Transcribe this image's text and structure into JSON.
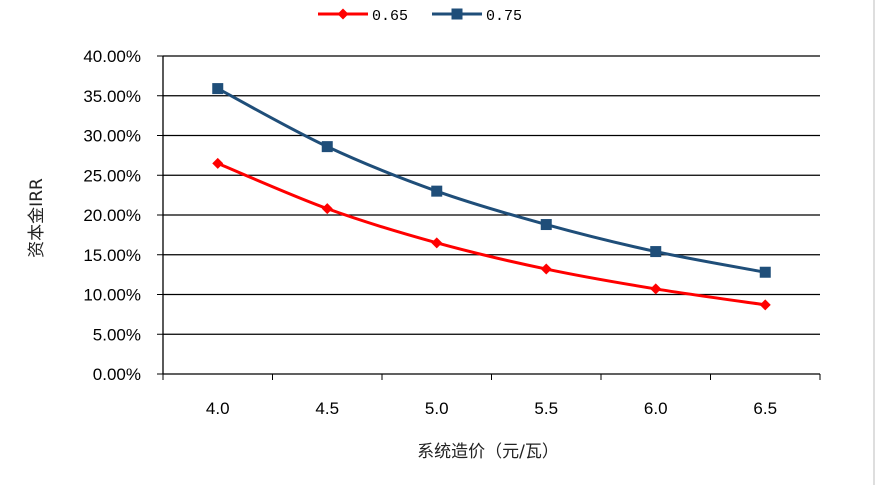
{
  "chart_data": {
    "type": "line",
    "title": "",
    "xlabel": "系统造价（元/瓦）",
    "ylabel": "资本金IRR",
    "categories": [
      "4.0",
      "4.5",
      "5.0",
      "5.5",
      "6.0",
      "6.5"
    ],
    "yticks": [
      "0.00%",
      "5.00%",
      "10.00%",
      "15.00%",
      "20.00%",
      "25.00%",
      "30.00%",
      "35.00%",
      "40.00%"
    ],
    "ylim": [
      0,
      40
    ],
    "grid": true,
    "legend_position": "top",
    "series": [
      {
        "name": "0.65",
        "color": "#ff0000",
        "marker": "diamond",
        "values": [
          26.5,
          20.8,
          16.5,
          13.2,
          10.7,
          8.7
        ]
      },
      {
        "name": "0.75",
        "color": "#1f4e79",
        "marker": "square",
        "values": [
          35.9,
          28.6,
          23.0,
          18.8,
          15.4,
          12.8
        ]
      }
    ]
  }
}
